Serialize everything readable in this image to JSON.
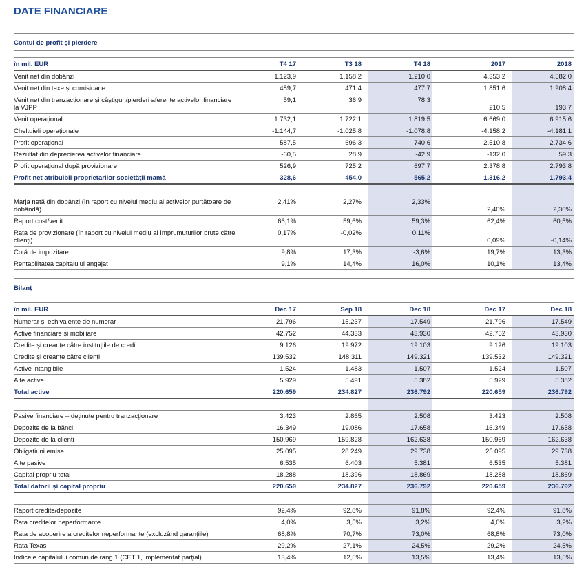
{
  "title": "DATE FINANCIARE",
  "sections": [
    {
      "title": "Contul de profit și pierdere",
      "unit": "în mil. EUR",
      "columns": [
        "T4 17",
        "T3 18",
        "T4 18",
        "2017",
        "2018"
      ],
      "groups": [
        {
          "rows": [
            {
              "label": "Venit net din dobânzi",
              "values": [
                "1.123,9",
                "1.158,2",
                "1.210,0",
                "4.353,2",
                "4.582,0"
              ]
            },
            {
              "label": "Venit net din taxe și comisioane",
              "values": [
                "489,7",
                "471,4",
                "477,7",
                "1.851,6",
                "1.908,4"
              ]
            },
            {
              "label": "Venit net din tranzacționare și câștiguri/pierderi aferente activelor financiare la VJPP",
              "values": [
                "59,1",
                "36,9",
                "78,3",
                "210,5",
                "193,7"
              ]
            },
            {
              "label": "Venit operațional",
              "values": [
                "1.732,1",
                "1.722,1",
                "1.819,5",
                "6.669,0",
                "6.915,6"
              ]
            },
            {
              "label": "Cheltuieli operaționale",
              "values": [
                "-1.144,7",
                "-1.025,8",
                "-1.078,8",
                "-4.158,2",
                "-4.181,1"
              ]
            },
            {
              "label": "Profit operațional",
              "values": [
                "587,5",
                "696,3",
                "740,6",
                "2.510,8",
                "2.734,6"
              ]
            },
            {
              "label": "Rezultat din deprecierea activelor financiare",
              "values": [
                "-60,5",
                "28,9",
                "-42,9",
                "-132,0",
                "59,3"
              ]
            },
            {
              "label": "Profit operațional după provizionare",
              "values": [
                "526,9",
                "725,2",
                "697,7",
                "2.378,8",
                "2.793,8"
              ]
            }
          ],
          "total": {
            "label": "Profit net atribuibil proprietarilor societății mamă",
            "values": [
              "328,6",
              "454,0",
              "565,2",
              "1.316,2",
              "1.793,4"
            ]
          }
        },
        {
          "rows": [
            {
              "label": "Marja netă din dobânzi (în raport cu nivelul mediu al activelor purtătoare de dobândă)",
              "values": [
                "2,41%",
                "2,27%",
                "2,33%",
                "2,40%",
                "2,30%"
              ]
            },
            {
              "label": "Raport cost/venit",
              "values": [
                "66,1%",
                "59,6%",
                "59,3%",
                "62,4%",
                "60,5%"
              ]
            },
            {
              "label": "Rata de provizionare (în raport cu nivelul mediu al împrumuturilor brute către clienți)",
              "values": [
                "0,17%",
                "-0,02%",
                "0,11%",
                "0,09%",
                "-0,14%"
              ]
            },
            {
              "label": "Cotă de impozitare",
              "values": [
                "9,8%",
                "17,3%",
                "-3,6%",
                "19,7%",
                "13,3%"
              ]
            },
            {
              "label": "Rentabilitatea capitalului angajat",
              "values": [
                "9,1%",
                "14,4%",
                "16,0%",
                "10,1%",
                "13,4%"
              ]
            }
          ]
        }
      ]
    },
    {
      "title": "Bilanț",
      "unit": "în mil. EUR",
      "columns": [
        "Dec 17",
        "Sep 18",
        "Dec 18",
        "Dec 17",
        "Dec 18"
      ],
      "groups": [
        {
          "rows": [
            {
              "label": "Numerar și echivalente de numerar",
              "values": [
                "21.796",
                "15.237",
                "17.549",
                "21.796",
                "17.549"
              ]
            },
            {
              "label": "Active financiare și mobiliare",
              "values": [
                "42.752",
                "44.333",
                "43.930",
                "42.752",
                "43.930"
              ]
            },
            {
              "label": "Credite și creanțe către instituțiile de credit",
              "values": [
                "9.126",
                "19.972",
                "19.103",
                "9.126",
                "19.103"
              ]
            },
            {
              "label": "Credite și creanțe către clienți",
              "values": [
                "139.532",
                "148.311",
                "149.321",
                "139.532",
                "149.321"
              ]
            },
            {
              "label": "Active intangibile",
              "values": [
                "1.524",
                "1.483",
                "1.507",
                "1.524",
                "1.507"
              ]
            },
            {
              "label": "Alte active",
              "values": [
                "5.929",
                "5.491",
                "5.382",
                "5.929",
                "5.382"
              ]
            }
          ],
          "total": {
            "label": "Total active",
            "values": [
              "220.659",
              "234.827",
              "236.792",
              "220.659",
              "236.792"
            ]
          }
        },
        {
          "rows": [
            {
              "label": "Pasive financiare – deținute pentru tranzacționare",
              "values": [
                "3.423",
                "2.865",
                "2.508",
                "3.423",
                "2.508"
              ]
            },
            {
              "label": "Depozite de la bănci",
              "values": [
                "16.349",
                "19.086",
                "17.658",
                "16.349",
                "17.658"
              ]
            },
            {
              "label": "Depozite de la clienți",
              "values": [
                "150.969",
                "159.828",
                "162.638",
                "150.969",
                "162.638"
              ]
            },
            {
              "label": "Obligațiuni emise",
              "values": [
                "25.095",
                "28.249",
                "29.738",
                "25.095",
                "29.738"
              ]
            },
            {
              "label": "Alte pasive",
              "values": [
                "6.535",
                "6.403",
                "5.381",
                "6.535",
                "5.381"
              ]
            },
            {
              "label": "Capital propriu total",
              "values": [
                "18.288",
                "18.396",
                "18.869",
                "18.288",
                "18.869"
              ]
            }
          ],
          "total": {
            "label": "Total datorii și capital propriu",
            "values": [
              "220.659",
              "234.827",
              "236.792",
              "220.659",
              "236.792"
            ]
          }
        },
        {
          "rows": [
            {
              "label": "Raport credite/depozite",
              "values": [
                "92,4%",
                "92,8%",
                "91,8%",
                "92,4%",
                "91,8%"
              ]
            },
            {
              "label": "Rata creditelor neperformante",
              "values": [
                "4,0%",
                "3,5%",
                "3,2%",
                "4,0%",
                "3,2%"
              ]
            },
            {
              "label": "Rata de acoperire a creditelor neperformante (excluzând garanțiile)",
              "values": [
                "68,8%",
                "70,7%",
                "73,0%",
                "68,8%",
                "73,0%"
              ]
            },
            {
              "label": "Rata Texas",
              "values": [
                "29,2%",
                "27,1%",
                "24,5%",
                "29,2%",
                "24,5%"
              ]
            },
            {
              "label": "Indicele capitalului comun de rang 1 (CET 1, implementat parțial)",
              "values": [
                "13,4%",
                "12,5%",
                "13,5%",
                "13,4%",
                "13,5%"
              ]
            }
          ]
        }
      ]
    }
  ]
}
